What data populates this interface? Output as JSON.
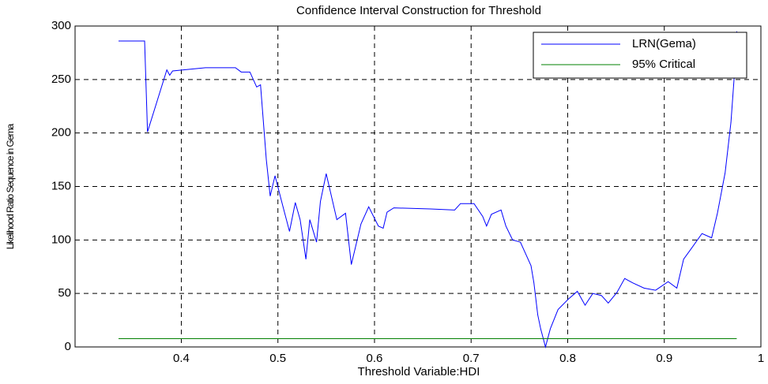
{
  "chart_data": {
    "type": "line",
    "title": "Confidence Interval Construction for Threshold",
    "x_label": "Threshold Variable:HDI",
    "y_label": "Likelihood Ratio Sequence in Gema",
    "xlim": [
      0.29,
      1
    ],
    "xticks": [
      0.4,
      0.5,
      0.6,
      0.7,
      0.8,
      0.9,
      1
    ],
    "ylim": [
      0,
      300
    ],
    "yticks": [
      0,
      50,
      100,
      150,
      200,
      250,
      300
    ],
    "grid": true,
    "legend": "upper right",
    "series": [
      {
        "name": "LRN(Gema)",
        "color": "#0000ff",
        "x": [
          0.335,
          0.362,
          0.365,
          0.385,
          0.388,
          0.391,
          0.425,
          0.456,
          0.462,
          0.471,
          0.478,
          0.482,
          0.488,
          0.492,
          0.497,
          0.505,
          0.512,
          0.518,
          0.523,
          0.529,
          0.533,
          0.54,
          0.544,
          0.55,
          0.561,
          0.57,
          0.576,
          0.586,
          0.594,
          0.604,
          0.609,
          0.613,
          0.62,
          0.658,
          0.683,
          0.689,
          0.703,
          0.712,
          0.716,
          0.721,
          0.731,
          0.736,
          0.743,
          0.751,
          0.757,
          0.762,
          0.765,
          0.769,
          0.772,
          0.777,
          0.782,
          0.79,
          0.801,
          0.81,
          0.818,
          0.826,
          0.835,
          0.842,
          0.851,
          0.859,
          0.867,
          0.879,
          0.891,
          0.904,
          0.913,
          0.92,
          0.928,
          0.939,
          0.949,
          0.955,
          0.963,
          0.969,
          0.973,
          0.975
        ],
        "values": [
          286,
          286,
          201,
          259,
          254,
          258,
          261,
          261,
          257,
          257,
          243,
          245,
          175,
          141,
          160,
          132,
          108,
          135,
          119,
          82,
          119,
          98,
          136,
          162,
          119,
          125,
          77,
          115,
          131,
          113,
          111,
          126,
          130,
          129,
          128,
          134,
          134,
          122,
          113,
          124,
          128,
          113,
          100,
          98,
          86,
          76,
          60,
          30,
          17,
          0,
          17,
          35,
          45,
          52,
          39,
          50,
          48,
          41,
          51,
          64,
          60,
          55,
          53,
          61,
          55,
          82,
          92,
          106,
          102,
          125,
          163,
          210,
          260,
          295
        ]
      },
      {
        "name": "95% Critical",
        "color": "#008000",
        "x": [
          0.335,
          0.975
        ],
        "values": [
          7.7,
          7.7
        ]
      }
    ]
  }
}
